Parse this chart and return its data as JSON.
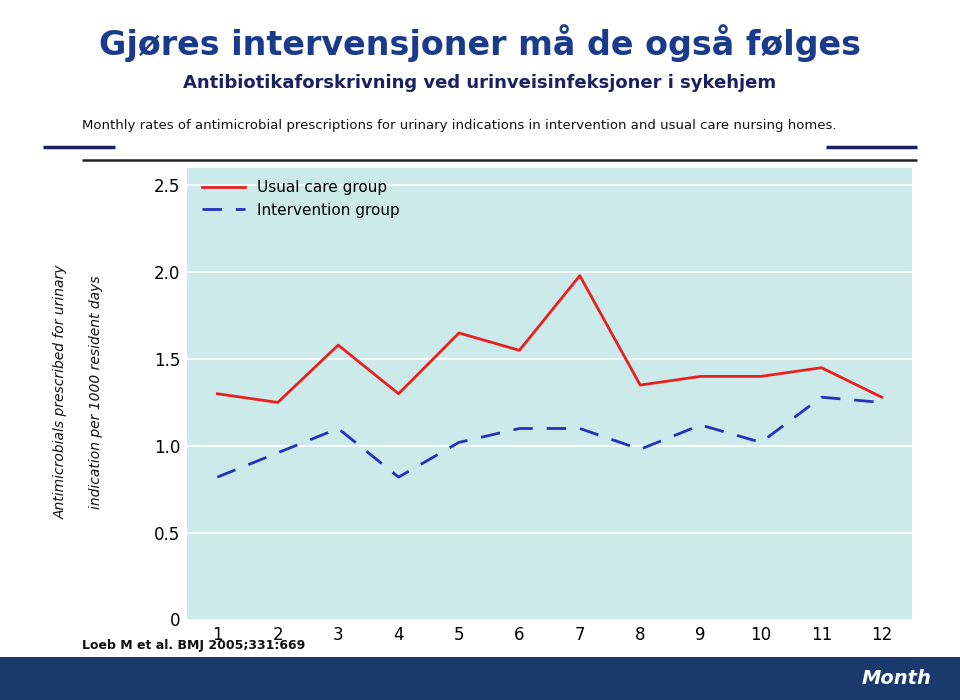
{
  "title": "Gjøres intervensjoner må de også følges",
  "subtitle": "Antibiotikaforskrivning ved urinveisinfeksjoner i sykehjem",
  "description": "Monthly rates of antimicrobial prescriptions for urinary indications in intervention and usual care nursing homes.",
  "citation": "Loeb M et al. BMJ 2005;331:669",
  "xlabel": "Month",
  "ylabel_line1": "Antimicrobials prescribed for urinary",
  "ylabel_line2": "indication per 1000 resident days",
  "usual_care_label": "Usual care group",
  "intervention_label": "Intervention group",
  "usual_care_x": [
    1,
    2,
    3,
    4,
    5,
    6,
    7,
    8,
    9,
    10,
    11,
    12
  ],
  "usual_care_y": [
    1.3,
    1.25,
    1.58,
    1.3,
    1.65,
    1.55,
    1.98,
    1.35,
    1.4,
    1.4,
    1.45,
    1.28
  ],
  "intervention_x": [
    1,
    2,
    3,
    4,
    5,
    6,
    7,
    8,
    9,
    10,
    11,
    12
  ],
  "intervention_y": [
    0.82,
    0.96,
    1.1,
    0.82,
    1.02,
    1.1,
    1.1,
    0.98,
    1.12,
    1.02,
    1.28,
    1.25
  ],
  "usual_care_color": "#e82020",
  "intervention_color": "#2233bb",
  "plot_bg_color": "#cceaea",
  "fig_bg_color": "#ffffff",
  "title_color": "#1a3a8c",
  "subtitle_color": "#1a2060",
  "description_color": "#111111",
  "sep_line_color": "#222222",
  "sep_short_color": "#1a2060",
  "banner_color": "#1a3a6e",
  "banner_text_color": "#ffffff",
  "ylim": [
    0,
    2.6
  ],
  "yticks": [
    0,
    0.5,
    1.0,
    1.5,
    2.0,
    2.5
  ],
  "xlim": [
    0.5,
    12.5
  ],
  "xticks": [
    1,
    2,
    3,
    4,
    5,
    6,
    7,
    8,
    9,
    10,
    11,
    12
  ]
}
